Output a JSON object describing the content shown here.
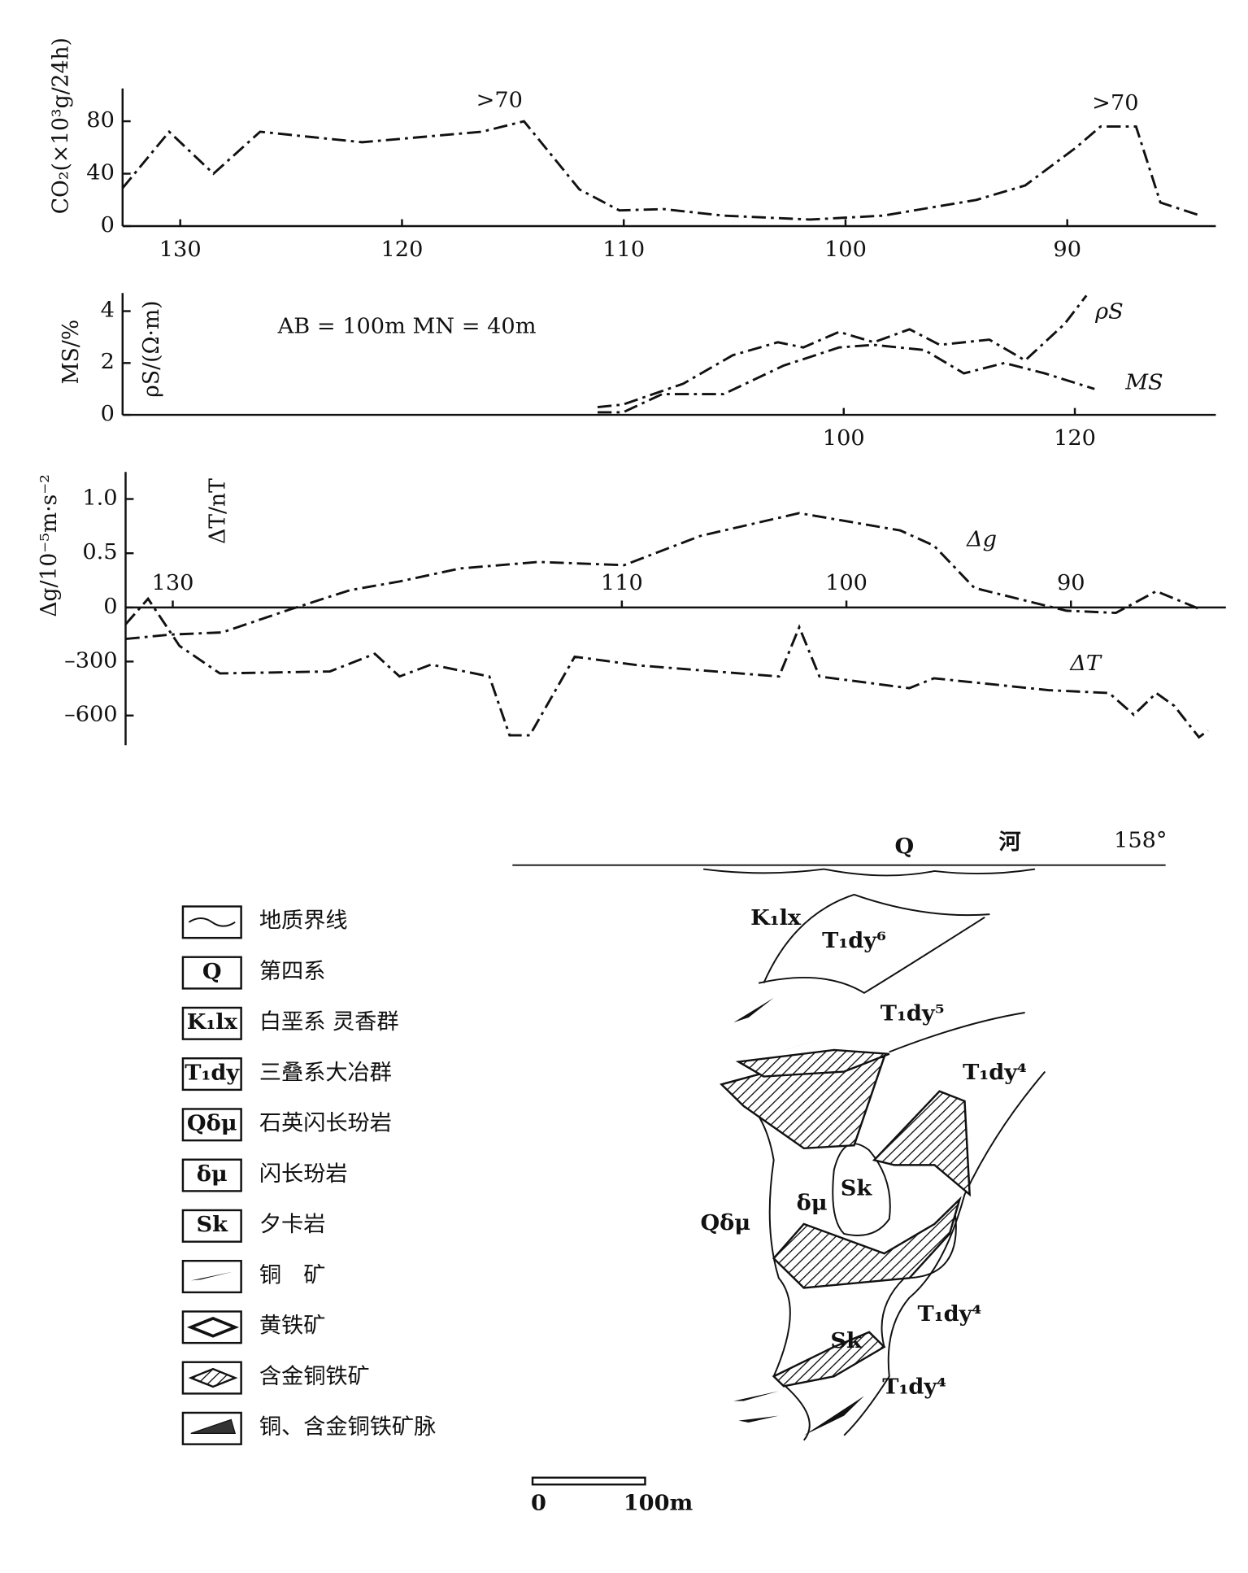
{
  "chart_data": [
    {
      "type": "line",
      "ylabel": "CO₂(×10³g/24h)",
      "x": [
        132.6,
        130.5,
        128.5,
        126.4,
        121.8,
        116.4,
        114.5,
        112.0,
        110.2,
        108.2,
        105.5,
        101.6,
        98.3,
        94.1,
        91.9,
        89.6,
        88.5,
        86.9,
        85.8,
        84.0
      ],
      "values": [
        29,
        72,
        40,
        72,
        64,
        72,
        80,
        28,
        12,
        13,
        8,
        5,
        8,
        20,
        31,
        60,
        76,
        76,
        18,
        8
      ],
      "color": "#111111",
      "xlim": [
        132.6,
        83.3
      ],
      "xticks": [
        130,
        120,
        110,
        100,
        90
      ],
      "ylim": [
        0,
        105
      ],
      "yticks": [
        0,
        40,
        80
      ],
      "annotations": [
        ">70",
        ">70"
      ]
    },
    {
      "type": "line",
      "ylabel": "MS/%",
      "y2label": "ρS/(Ω·m)",
      "annotations": [
        "AB = 100m    MN = 40m"
      ],
      "xlim": [
        37.6,
        132.2
      ],
      "xticks": [
        100,
        120
      ],
      "ylim": [
        0,
        4.7
      ],
      "yticks": [
        0,
        2,
        4
      ],
      "series": [
        {
          "name": "ρS",
          "color": "#111111",
          "x": [
            78.7,
            80.9,
            86.1,
            90.4,
            94.3,
            96.5,
            99.6,
            102.6,
            105.7,
            108.3,
            112.6,
            115.7,
            119.1,
            121.0
          ],
          "values": [
            0.3,
            0.4,
            1.2,
            2.3,
            2.8,
            2.6,
            3.2,
            2.8,
            3.3,
            2.7,
            2.9,
            2.1,
            3.5,
            4.6
          ]
        },
        {
          "name": "MS",
          "color": "#111111",
          "x": [
            78.7,
            80.9,
            84.3,
            89.6,
            94.8,
            99.6,
            102.6,
            107.0,
            110.4,
            113.9,
            117.4,
            121.7
          ],
          "values": [
            0.1,
            0.1,
            0.8,
            0.8,
            1.9,
            2.6,
            2.7,
            2.5,
            1.6,
            2.0,
            1.6,
            1.0
          ]
        }
      ]
    },
    {
      "type": "line",
      "ylabel": "Δg/10⁻⁵m·s⁻²",
      "y2label": "ΔT/nT",
      "xlim": [
        132.1,
        83.1
      ],
      "xticks": [
        130,
        110,
        100,
        90
      ],
      "ylim": [
        -1.27,
        1.25
      ],
      "yticks": [
        0,
        0.5,
        {
          "value": 1,
          "label": "1.0"
        }
      ],
      "y2lim": [
        -765,
        754
      ],
      "y2ticks": [
        {
          "value": -300,
          "label": "–300"
        },
        {
          "value": -600,
          "label": "–600"
        }
      ],
      "series": [
        {
          "name": "Δg",
          "color": "#111111",
          "x": [
            132.1,
            130.1,
            127.8,
            124.8,
            122.1,
            119.9,
            117.2,
            113.7,
            109.9,
            106.5,
            102.1,
            97.6,
            96.1,
            94.3,
            90.2,
            88.0,
            86.2,
            84.2
          ],
          "values": [
            -0.29,
            -0.25,
            -0.23,
            -0.02,
            0.16,
            0.24,
            0.36,
            0.42,
            0.39,
            0.66,
            0.87,
            0.71,
            0.57,
            0.18,
            -0.03,
            -0.05,
            0.15,
            -0.02
          ]
        },
        {
          "name": "ΔT",
          "color": "#111111",
          "axis": "y2",
          "x": [
            132.1,
            131.1,
            129.7,
            127.9,
            123.0,
            121.0,
            119.9,
            118.5,
            115.9,
            115.0,
            114.1,
            112.1,
            109.2,
            103.0,
            102.1,
            101.2,
            97.2,
            96.1,
            91.0,
            88.3,
            87.2,
            86.2,
            85.4,
            84.3,
            83.9
          ],
          "values": [
            -93,
            49,
            -213,
            -366,
            -355,
            -257,
            -383,
            -317,
            -383,
            -710,
            -710,
            -273,
            -322,
            -383,
            -109,
            -383,
            -448,
            -393,
            -459,
            -475,
            -596,
            -475,
            -546,
            -721,
            -683
          ]
        }
      ]
    }
  ],
  "legend": [
    {
      "label": "地质界线"
    },
    {
      "symbol": "Q",
      "label": "第四系"
    },
    {
      "symbol": "K₁lx",
      "label": "白垩系 灵香群"
    },
    {
      "symbol": "T₁dy",
      "label": "三叠系大冶群"
    },
    {
      "symbol": "Qδμ",
      "label": "石英闪长玢岩"
    },
    {
      "symbol": "δμ",
      "label": "闪长玢岩"
    },
    {
      "symbol": "Sk",
      "label": "夕卡岩"
    },
    {
      "label": "铜　矿"
    },
    {
      "label": "黄铁矿"
    },
    {
      "label": "含金铜铁矿"
    },
    {
      "label": "铜、含金铜铁矿脉"
    }
  ],
  "section": {
    "labels": [
      "Q",
      "河",
      "158°",
      "K₁lx",
      "T₁dy⁶",
      "T₁dy⁵",
      "T₁dy⁴",
      "Sk",
      "δμ",
      "Qδμ",
      "Sk",
      "T₁dy⁴",
      "T₁dy⁴"
    ],
    "scale": [
      "0",
      "100m"
    ]
  }
}
